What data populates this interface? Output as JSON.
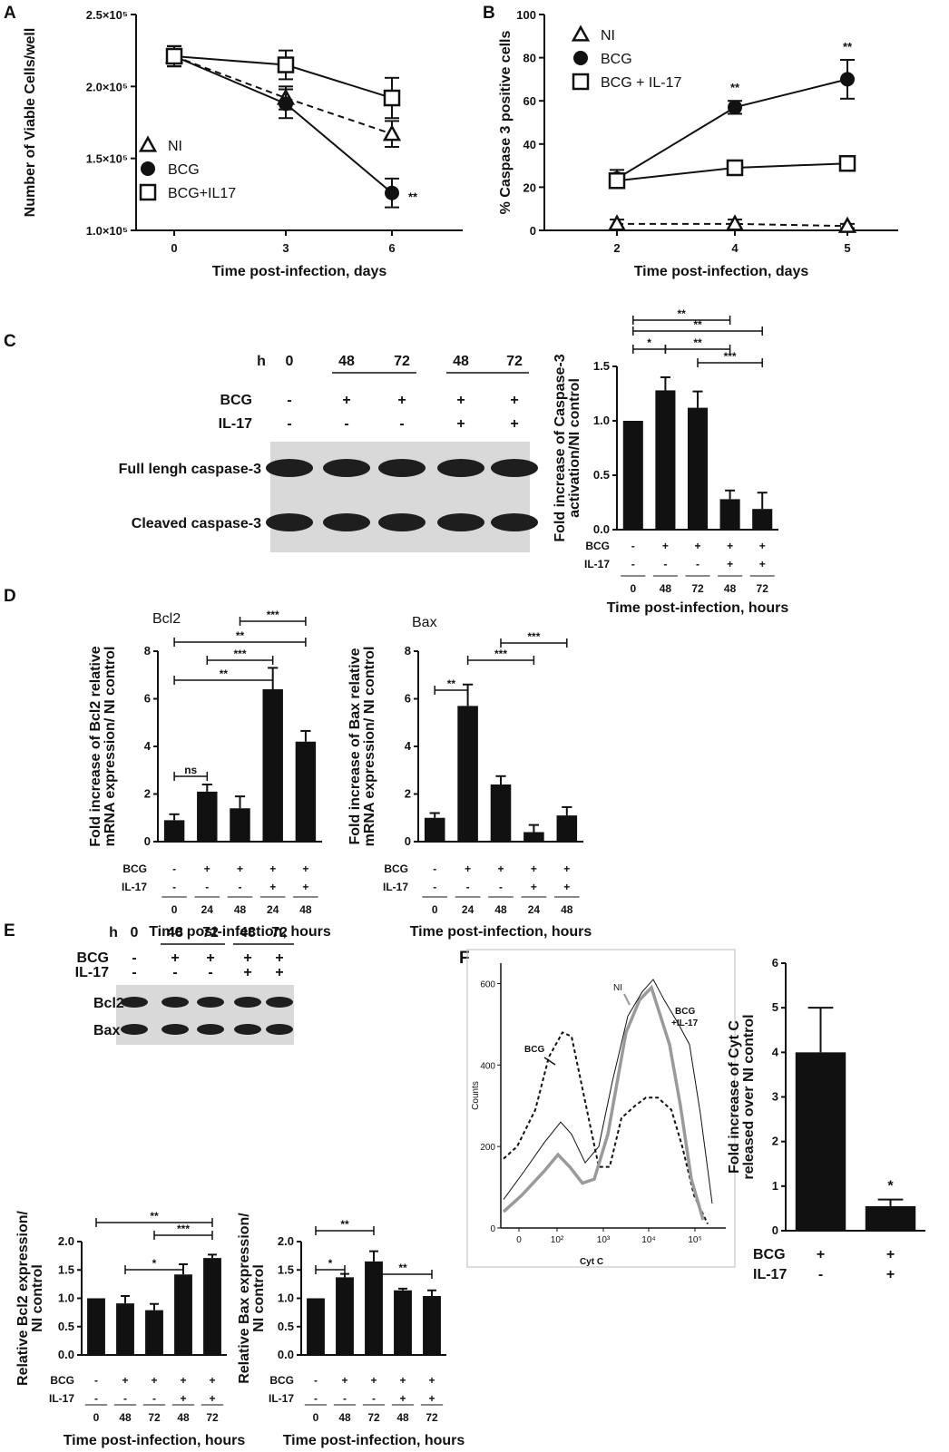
{
  "colors": {
    "ink": "#111111",
    "blot_bg": "#d9d9d9",
    "band": "#1e1e1e",
    "hist_gray": "#9a9a9a"
  },
  "panel_labels": {
    "A": "A",
    "B": "B",
    "C": "C",
    "D": "D",
    "E": "E",
    "F": "F"
  },
  "chart_data": [
    {
      "id": "A",
      "type": "line",
      "xlabel": "Time post-infection, days",
      "ylabel": "Number of Viable Cells/well",
      "x": [
        0,
        3,
        6
      ],
      "x_ticks": [
        "0",
        "3",
        "6"
      ],
      "y_ticks": [
        "1.0×10⁵",
        "1.5×10⁵",
        "2.0×10⁵",
        "2.5×10⁵"
      ],
      "ylim": [
        100000,
        250000
      ],
      "legend_placement": "left-middle",
      "series": [
        {
          "name": "NI",
          "marker": "triangle",
          "dash": true,
          "values": [
            221000,
            192000,
            167000
          ],
          "err": [
            7000,
            8000,
            9000
          ]
        },
        {
          "name": "BCG",
          "marker": "circle",
          "dash": false,
          "values": [
            221000,
            188000,
            126000
          ],
          "err": [
            7000,
            10000,
            10000
          ]
        },
        {
          "name": "BCG+IL17",
          "marker": "square",
          "dash": false,
          "values": [
            221000,
            215000,
            192000
          ],
          "err": [
            7000,
            10000,
            14000
          ]
        }
      ],
      "annotations": [
        {
          "text": "**",
          "series": "BCG",
          "x": 6
        }
      ]
    },
    {
      "id": "B",
      "type": "line",
      "xlabel": "Time post-infection, days",
      "ylabel": "% Caspase 3 positive cells",
      "x": [
        2,
        4,
        5
      ],
      "x_ticks": [
        "2",
        "4",
        "5"
      ],
      "y_ticks": [
        "0",
        "20",
        "40",
        "60",
        "80",
        "100"
      ],
      "ylim": [
        0,
        100
      ],
      "legend_placement": "top-left",
      "series": [
        {
          "name": "NI",
          "marker": "triangle",
          "dash": true,
          "values": [
            3,
            3,
            2
          ],
          "err": [
            2,
            2,
            1
          ]
        },
        {
          "name": "BCG",
          "marker": "circle",
          "dash": false,
          "values": [
            24,
            57,
            70
          ],
          "err": [
            4,
            3,
            9
          ]
        },
        {
          "name": "BCG + IL-17",
          "marker": "square",
          "dash": false,
          "values": [
            23,
            29,
            31
          ],
          "err": [
            3,
            2,
            2
          ]
        }
      ],
      "annotations": [
        {
          "text": "**",
          "series": "BCG",
          "x": 4
        },
        {
          "text": "**",
          "series": "BCG",
          "x": 5
        }
      ]
    },
    {
      "id": "C",
      "type": "bar",
      "ylabel": "Fold increase of Caspase-3 activation/NI control",
      "xlabel": "Time post-infection, hours",
      "categories": [
        "0",
        "48",
        "72",
        "48",
        "72"
      ],
      "bcg": [
        "-",
        "+",
        "+",
        "+",
        "+"
      ],
      "il17": [
        "-",
        "-",
        "-",
        "+",
        "+"
      ],
      "values": [
        1.0,
        1.28,
        1.12,
        0.28,
        0.19
      ],
      "err": [
        0,
        0.12,
        0.15,
        0.08,
        0.15
      ],
      "ylim": [
        0,
        1.5
      ],
      "y_ticks": [
        "0.0",
        "0.5",
        "1.0",
        "1.5"
      ],
      "significance": [
        {
          "from": 0,
          "to": 3,
          "text": "**"
        },
        {
          "from": 0,
          "to": 4,
          "text": "**"
        },
        {
          "from": 0,
          "to": 1,
          "text": "*"
        },
        {
          "from": 1,
          "to": 3,
          "text": "**"
        },
        {
          "from": 2,
          "to": 4,
          "text": "***"
        }
      ]
    },
    {
      "id": "D-Bcl2",
      "type": "bar",
      "title": "Bcl2",
      "ylabel": "Fold increase of Bcl2 relative mRNA expression/ NI control",
      "xlabel": "Time post-infection, hours",
      "categories": [
        "0",
        "24",
        "48",
        "24",
        "48"
      ],
      "bcg": [
        "-",
        "+",
        "+",
        "+",
        "+"
      ],
      "il17": [
        "-",
        "-",
        "-",
        "+",
        "+"
      ],
      "values": [
        0.9,
        2.1,
        1.4,
        6.4,
        4.2
      ],
      "err": [
        0.25,
        0.3,
        0.5,
        0.9,
        0.45
      ],
      "ylim": [
        0,
        8
      ],
      "y_ticks": [
        "0",
        "2",
        "4",
        "6",
        "8"
      ],
      "significance": [
        {
          "from": 2,
          "to": 4,
          "text": "***"
        },
        {
          "from": 0,
          "to": 4,
          "text": "**"
        },
        {
          "from": 1,
          "to": 3,
          "text": "***"
        },
        {
          "from": 0,
          "to": 3,
          "text": "**"
        },
        {
          "from": 0,
          "to": 1,
          "text": "ns"
        }
      ]
    },
    {
      "id": "D-Bax",
      "type": "bar",
      "title": "Bax",
      "ylabel": "Fold increase of Bax relative mRNA expression/ NI control",
      "xlabel": "Time post-infection, hours",
      "categories": [
        "0",
        "24",
        "48",
        "24",
        "48"
      ],
      "bcg": [
        "-",
        "+",
        "+",
        "+",
        "+"
      ],
      "il17": [
        "-",
        "-",
        "-",
        "+",
        "+"
      ],
      "values": [
        1.0,
        5.7,
        2.4,
        0.4,
        1.1
      ],
      "err": [
        0.2,
        0.9,
        0.35,
        0.3,
        0.35
      ],
      "ylim": [
        0,
        8
      ],
      "y_ticks": [
        "0",
        "2",
        "4",
        "6",
        "8"
      ],
      "significance": [
        {
          "from": 2,
          "to": 4,
          "text": "***"
        },
        {
          "from": 1,
          "to": 3,
          "text": "***"
        },
        {
          "from": 0,
          "to": 1,
          "text": "**"
        }
      ]
    },
    {
      "id": "E-Bcl2",
      "type": "bar",
      "ylabel": "Relative Bcl2 expression/ NI control",
      "xlabel": "Time post-infection, hours",
      "categories": [
        "0",
        "48",
        "72",
        "48",
        "72"
      ],
      "bcg": [
        "-",
        "+",
        "+",
        "+",
        "+"
      ],
      "il17": [
        "-",
        "-",
        "-",
        "+",
        "+"
      ],
      "values": [
        1.0,
        0.91,
        0.79,
        1.42,
        1.71
      ],
      "err": [
        0,
        0.13,
        0.11,
        0.18,
        0.06
      ],
      "ylim": [
        0,
        2.0
      ],
      "y_ticks": [
        "0.0",
        "0.5",
        "1.0",
        "1.5",
        "2.0"
      ],
      "significance": [
        {
          "from": 0,
          "to": 4,
          "text": "**"
        },
        {
          "from": 2,
          "to": 4,
          "text": "***"
        },
        {
          "from": 1,
          "to": 3,
          "text": "*"
        }
      ]
    },
    {
      "id": "E-Bax",
      "type": "bar",
      "ylabel": "Relative Bax expression/ NI control",
      "xlabel": "Time post-infection, hours",
      "categories": [
        "0",
        "48",
        "72",
        "48",
        "72"
      ],
      "bcg": [
        "-",
        "+",
        "+",
        "+",
        "+"
      ],
      "il17": [
        "-",
        "-",
        "-",
        "+",
        "+"
      ],
      "values": [
        1.0,
        1.37,
        1.65,
        1.14,
        1.04
      ],
      "err": [
        0,
        0.06,
        0.18,
        0.03,
        0.1
      ],
      "ylim": [
        0,
        2.0
      ],
      "y_ticks": [
        "0.0",
        "0.5",
        "1.0",
        "1.5",
        "2.0"
      ],
      "significance": [
        {
          "from": 0,
          "to": 2,
          "text": "**"
        },
        {
          "from": 0,
          "to": 1,
          "text": "*"
        },
        {
          "from": 2,
          "to": 4,
          "text": "**"
        }
      ]
    },
    {
      "id": "F-bar",
      "type": "bar",
      "ylabel": "Fold increase of Cyt C released over NI control",
      "categories": [
        "BCG",
        "BCG + IL-17"
      ],
      "bcg": [
        "+",
        "+"
      ],
      "il17": [
        "-",
        "+"
      ],
      "values": [
        4.0,
        0.55
      ],
      "err": [
        1.0,
        0.15
      ],
      "ylim": [
        0,
        6
      ],
      "y_ticks": [
        "0",
        "1",
        "2",
        "3",
        "4",
        "5",
        "6"
      ],
      "annotations": [
        {
          "text": "*",
          "index": 1
        }
      ]
    },
    {
      "id": "F-histogram",
      "type": "line",
      "xlabel": "Cyt C",
      "ylabel": "Counts",
      "x_ticks": [
        "0",
        "10²",
        "10³",
        "10⁴",
        "10⁵"
      ],
      "y_ticks": [
        "0",
        "200",
        "400",
        "600"
      ],
      "ylim": [
        0,
        650
      ],
      "labels": [
        "BCG",
        "NI",
        "BCG +IL-17"
      ]
    }
  ],
  "blots": {
    "C": {
      "header_h": "h",
      "timepoints": [
        "0",
        "48",
        "72",
        "48",
        "72"
      ],
      "bcg_label": "BCG",
      "il17_label": "IL-17",
      "bcg": [
        "-",
        "+",
        "+",
        "+",
        "+"
      ],
      "il17": [
        "-",
        "-",
        "-",
        "+",
        "+"
      ],
      "rows": [
        "Full lengh caspase-3",
        "Cleaved caspase-3"
      ]
    },
    "E": {
      "header_h": "h",
      "timepoints": [
        "0",
        "48",
        "72",
        "48",
        "72"
      ],
      "bcg_label": "BCG",
      "il17_label": "IL-17",
      "bcg": [
        "-",
        "+",
        "+",
        "+",
        "+"
      ],
      "il17": [
        "-",
        "-",
        "-",
        "+",
        "+"
      ],
      "rows": [
        "Bcl2",
        "Bax"
      ]
    }
  },
  "condition_labels": {
    "bcg": "BCG",
    "il17": "IL-17"
  }
}
